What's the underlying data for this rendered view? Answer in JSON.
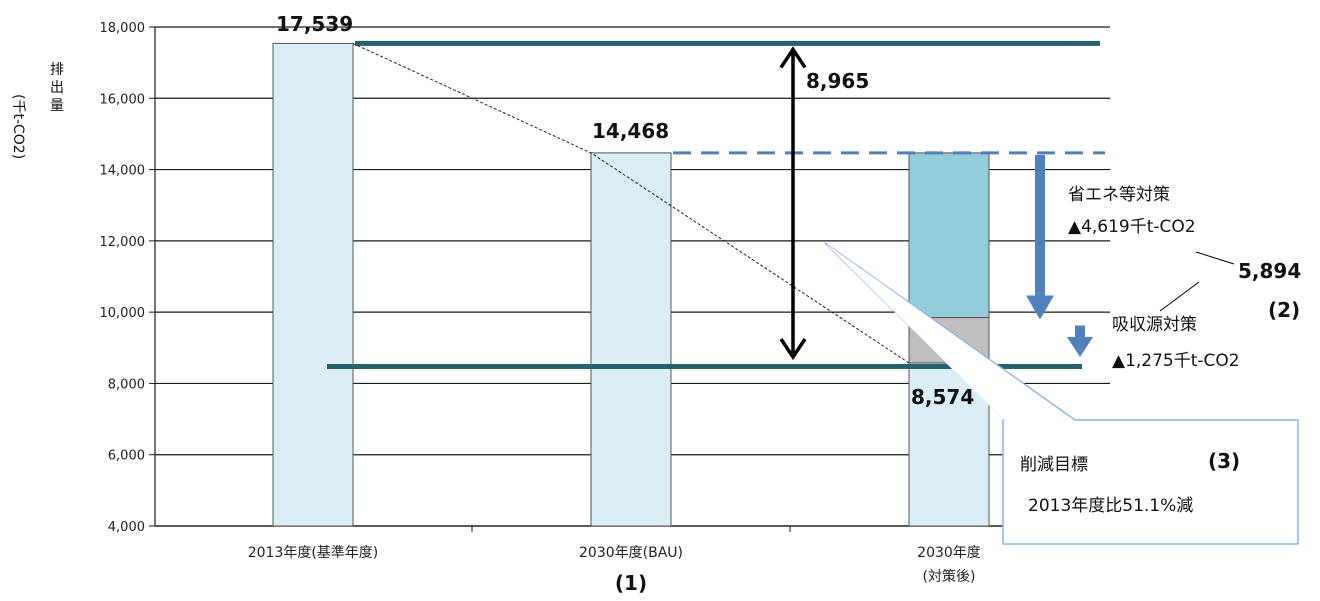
{
  "chart_data": {
    "type": "bar",
    "ylabel": "排出量 (千t-CO2)",
    "ylim": [
      4000,
      18000
    ],
    "yticks": [
      4000,
      6000,
      8000,
      10000,
      12000,
      14000,
      16000,
      18000
    ],
    "ytick_labels": [
      "4,000",
      "6,000",
      "8,000",
      "10,000",
      "12,000",
      "14,000",
      "16,000",
      "18,000"
    ],
    "grid": true,
    "categories": [
      {
        "label": "2013年度(基準年度)",
        "sublabel": "",
        "marker": ""
      },
      {
        "label": "2030年度(BAU)",
        "sublabel": "",
        "marker": "(1)"
      },
      {
        "label": "2030年度",
        "sublabel": "(対策後)",
        "marker": ""
      }
    ],
    "bars": [
      {
        "category_index": 0,
        "value": 17539,
        "value_label": "17,539",
        "color": "#dbeef6"
      },
      {
        "category_index": 1,
        "value": 14468,
        "value_label": "14,468",
        "color": "#dbeef6"
      },
      {
        "category_index": 2,
        "value": 8574,
        "value_label": "8,574",
        "color": "#dbeef6",
        "stack": [
          {
            "name": "吸収源対策",
            "from": 8574,
            "to": 9849,
            "color": "#bfbfbf"
          },
          {
            "name": "省エネ等対策",
            "from": 9849,
            "to": 14468,
            "color": "#93cddd"
          }
        ]
      }
    ],
    "reference_lines": [
      {
        "value": 17539,
        "style": "solid",
        "color": "#27616b"
      },
      {
        "value": 14468,
        "style": "dashed",
        "color": "#4f7fb5"
      },
      {
        "value": 8474,
        "style": "solid",
        "color": "#27616b"
      }
    ],
    "difference_arrow": {
      "from": 17539,
      "to": 8574,
      "label": "8,965"
    },
    "measures": [
      {
        "name": "省エネ等対策",
        "amount_label": "▲4,619千t-CO2",
        "from": 14468,
        "to": 9849
      },
      {
        "name": "吸収源対策",
        "amount_label": "▲1,275千t-CO2",
        "from": 9849,
        "to": 8574
      }
    ],
    "measures_total_label": "5,894",
    "measures_marker": "(2)",
    "callout": {
      "title": "削減目標",
      "marker": "(3)",
      "text": "2013年度比51.1%減"
    }
  }
}
